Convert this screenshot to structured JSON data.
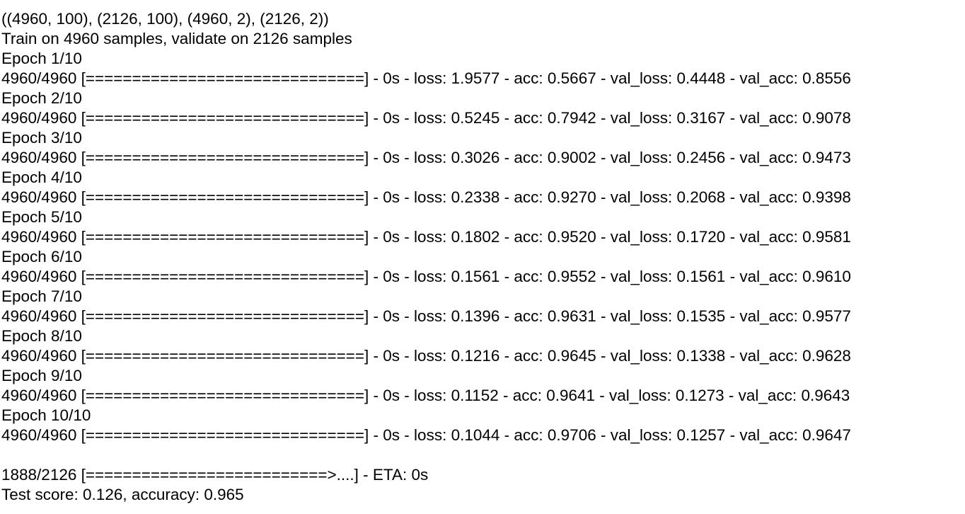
{
  "console": {
    "shapes_line": "((4960, 100), (2126, 100), (4960, 2), (2126, 2))",
    "train_info": "Train on 4960 samples, validate on 2126 samples",
    "epochs": [
      {
        "header": "Epoch 1/10",
        "progress": "4960/4960 [==============================] - 0s - loss: 1.9577 - acc: 0.5667 - val_loss: 0.4448 - val_acc: 0.8556"
      },
      {
        "header": "Epoch 2/10",
        "progress": "4960/4960 [==============================] - 0s - loss: 0.5245 - acc: 0.7942 - val_loss: 0.3167 - val_acc: 0.9078"
      },
      {
        "header": "Epoch 3/10",
        "progress": "4960/4960 [==============================] - 0s - loss: 0.3026 - acc: 0.9002 - val_loss: 0.2456 - val_acc: 0.9473"
      },
      {
        "header": "Epoch 4/10",
        "progress": "4960/4960 [==============================] - 0s - loss: 0.2338 - acc: 0.9270 - val_loss: 0.2068 - val_acc: 0.9398"
      },
      {
        "header": "Epoch 5/10",
        "progress": "4960/4960 [==============================] - 0s - loss: 0.1802 - acc: 0.9520 - val_loss: 0.1720 - val_acc: 0.9581"
      },
      {
        "header": "Epoch 6/10",
        "progress": "4960/4960 [==============================] - 0s - loss: 0.1561 - acc: 0.9552 - val_loss: 0.1561 - val_acc: 0.9610"
      },
      {
        "header": "Epoch 7/10",
        "progress": "4960/4960 [==============================] - 0s - loss: 0.1396 - acc: 0.9631 - val_loss: 0.1535 - val_acc: 0.9577"
      },
      {
        "header": "Epoch 8/10",
        "progress": "4960/4960 [==============================] - 0s - loss: 0.1216 - acc: 0.9645 - val_loss: 0.1338 - val_acc: 0.9628"
      },
      {
        "header": "Epoch 9/10",
        "progress": "4960/4960 [==============================] - 0s - loss: 0.1152 - acc: 0.9641 - val_loss: 0.1273 - val_acc: 0.9643"
      },
      {
        "header": "Epoch 10/10",
        "progress": "4960/4960 [==============================] - 0s - loss: 0.1044 - acc: 0.9706 - val_loss: 0.1257 - val_acc: 0.9647"
      }
    ],
    "eval_progress": "1888/2126 [==========================>....] - ETA: 0s",
    "test_score": "Test score: 0.126, accuracy: 0.965"
  }
}
